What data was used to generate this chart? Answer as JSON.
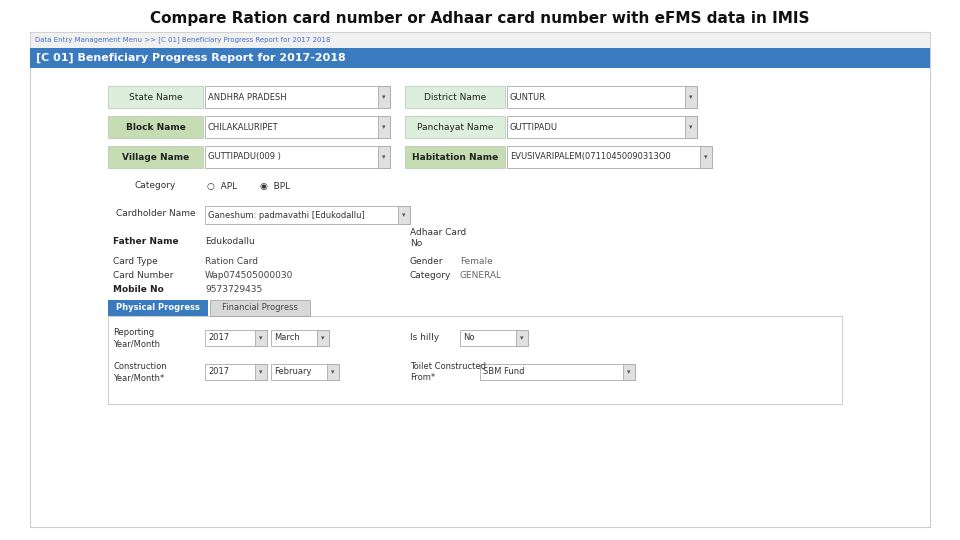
{
  "title": "Compare Ration card number or Adhaar card number with eFMS data in IMIS",
  "title_fontsize": 11,
  "title_fontweight": "bold",
  "bg_color": "#ffffff",
  "breadcrumb_text": "Data Entry Management Menu >> [C 01] Beneficiary Progress Report for 2017 2018",
  "breadcrumb_color": "#4472c4",
  "header_text": "[C 01] Beneficiary Progress Report for 2017-2018",
  "header_bg": "#3a7abf",
  "header_text_color": "#ffffff",
  "label_bold_bg": "#c6ddb4",
  "label_normal_bg": "#ddeedd",
  "fields_left_labels": [
    "State Name",
    "Block Name",
    "Village Name"
  ],
  "fields_left_bold": [
    false,
    true,
    true
  ],
  "fields_left_values": [
    "ANDHRA PRADESH",
    "CHILAKALURIPET",
    "GUTTIPADU(009 )"
  ],
  "fields_right_labels": [
    "District Name",
    "Panchayat Name",
    "Habitation Name"
  ],
  "fields_right_bold": [
    false,
    false,
    true
  ],
  "fields_right_values": [
    "GUNTUR",
    "GUTTIPADU",
    "EVUSIVARIPALEM(07110450090313O0"
  ],
  "category_label": "Category",
  "category_options": [
    "APL",
    "BPL"
  ],
  "cardholder_label": "Cardholder Name",
  "cardholder_value": "Ganeshum: padmavathi [Edukodallu]",
  "father_label": "Father Name",
  "father_value": "Edukodallu",
  "adhaar_label": "Adhaar Card\nNo",
  "card_type_label": "Card Type",
  "card_type_value": "Ration Card",
  "gender_label": "Gender",
  "gender_value": "Female",
  "card_number_label": "Card Number",
  "card_number_value": "Wap074505000030",
  "category2_label": "Category",
  "category2_value": "GENERAL",
  "mobile_label": "Mobile No",
  "mobile_value": "9573729435",
  "tab1_text": "Physical Progress",
  "tab1_bg": "#3a7abf",
  "tab1_color": "#ffffff",
  "tab2_text": "Financial Progress",
  "tab2_bg": "#d8d8d8",
  "tab2_color": "#444444",
  "reporting_label": "Reporting\nYear/Month",
  "reporting_year": "2017",
  "reporting_month": "March",
  "hilly_label": "Is hilly",
  "hilly_value": "No",
  "construction_label": "Construction\nYear/Month*",
  "construction_year": "2017",
  "construction_month": "February",
  "toilet_label": "Toilet Constructed\nFrom*",
  "toilet_value": "SBM Fund",
  "form_outer_bg": "#ffffff",
  "form_outer_border": "#bbbbbb"
}
